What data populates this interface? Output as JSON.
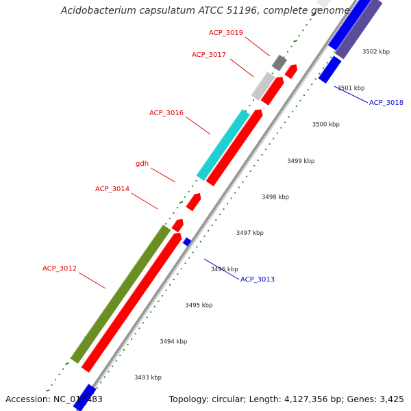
{
  "title": "Acidobacterium capsulatum ATCC 51196, complete genome",
  "footer": {
    "accession": "Accession: NC_012483",
    "summary": "Topology: circular; Length: 4,127,356 bp; Genes: 3,425"
  },
  "colors": {
    "backbone": "#999999",
    "cds_forward": "#ff0000",
    "cds_reverse": "#0000ee",
    "cog_olive": "#6b8e23",
    "cog_cyan": "#20cfcf",
    "cog_grey_light": "#c8c8c8",
    "cog_grey_dark": "#7a7a7a",
    "cog_slate": "#5a4e9a",
    "dots": "#1f8a1f",
    "label_forward": "#dd0000",
    "label_reverse": "#0000cc"
  },
  "ticks": [
    "3493 kbp",
    "3494 kbp",
    "3495 kbp",
    "3496 kbp",
    "3497 kbp",
    "3498 kbp",
    "3499 kbp",
    "3500 kbp",
    "3501 kbp",
    "3502 kbp"
  ],
  "labels": [
    {
      "name": "ACP_3019",
      "strand": "forward"
    },
    {
      "name": "ACP_3017",
      "strand": "forward"
    },
    {
      "name": "ACP_3016",
      "strand": "forward"
    },
    {
      "name": "gdh",
      "strand": "forward"
    },
    {
      "name": "ACP_3014",
      "strand": "forward"
    },
    {
      "name": "ACP_3012",
      "strand": "forward"
    },
    {
      "name": "ACP_3018",
      "strand": "reverse"
    },
    {
      "name": "ACP_3013",
      "strand": "reverse"
    }
  ]
}
